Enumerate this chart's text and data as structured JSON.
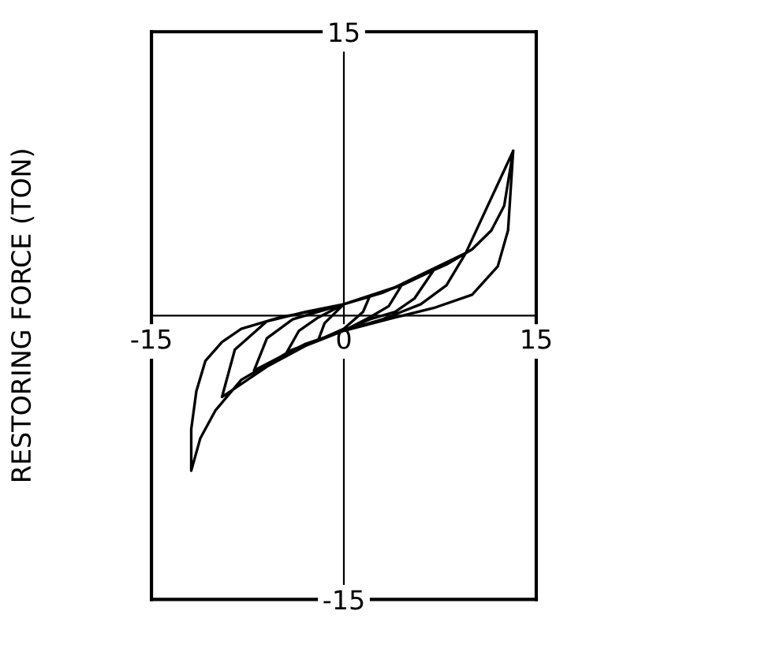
{
  "chart_data": {
    "type": "line",
    "ylabel": "RESTORING FORCE (TON)",
    "xlim": [
      -15,
      15
    ],
    "ylim": [
      -15,
      15
    ],
    "xticks": [
      -15,
      0,
      15
    ],
    "yticks": [
      -15,
      15
    ],
    "grid": false,
    "series": [
      {
        "color": "#000000",
        "x": [
          2,
          1.5,
          0,
          -2,
          -1.5,
          0,
          2,
          4.5,
          3.5,
          2,
          0,
          -2,
          -4.5,
          -3.5,
          -2,
          0,
          2,
          4.5,
          7,
          5.5,
          4,
          2,
          0,
          -3,
          -7,
          -6,
          -4,
          0,
          3,
          7,
          9.5,
          8,
          6,
          3,
          0,
          -3,
          -6,
          -9.5,
          -8.5,
          -6,
          -3,
          0,
          4,
          9.5,
          13.2,
          12.8,
          12,
          10,
          7,
          4,
          0,
          -4,
          -8,
          -10,
          -11.2,
          -11.9,
          -11.9,
          -11.5,
          -10.8,
          -9.5,
          -8,
          -5,
          -2,
          0,
          4,
          8,
          10,
          11.5,
          12.5,
          13.2
        ],
        "values": [
          1.0,
          0.2,
          -0.7,
          -1.3,
          -0.4,
          0.6,
          1.0,
          1.6,
          0.5,
          -0.1,
          -0.8,
          -1.3,
          -2.0,
          -0.8,
          -0.1,
          0.6,
          1.0,
          1.6,
          2.4,
          0.9,
          0.2,
          -0.2,
          -0.8,
          -1.5,
          -2.9,
          -1.2,
          -0.2,
          0.6,
          1.2,
          2.4,
          3.3,
          1.6,
          0.6,
          -0.2,
          -0.8,
          -1.6,
          -2.7,
          -4.3,
          -1.8,
          -0.3,
          0.2,
          0.6,
          1.5,
          3.3,
          8.7,
          4.5,
          2.6,
          1.1,
          0.4,
          -0.1,
          -0.8,
          -1.8,
          -3.4,
          -5.0,
          -6.5,
          -8.2,
          -6.0,
          -4.0,
          -2.4,
          -1.4,
          -0.7,
          -0.1,
          0.3,
          0.6,
          1.5,
          2.7,
          3.5,
          4.5,
          5.8,
          8.7
        ]
      }
    ]
  }
}
